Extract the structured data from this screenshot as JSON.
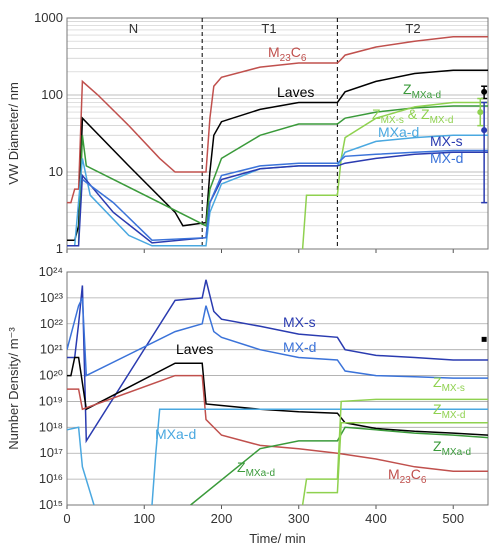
{
  "chart_data": [
    {
      "type": "line",
      "ylog": true,
      "ylabel": "VW Diameter/ nm",
      "xlim": [
        0,
        545
      ],
      "ylim": [
        1,
        1000
      ],
      "yticks": [
        1,
        10,
        100,
        1000
      ],
      "xticks": [
        0,
        100,
        200,
        300,
        400,
        500
      ],
      "minor_grid": true,
      "annotations": [
        "N",
        "T1",
        "T2"
      ],
      "vlines": [
        175,
        350
      ],
      "series": [
        {
          "color": "#c0504d",
          "x": [
            0,
            5,
            10,
            15,
            20,
            40,
            80,
            120,
            140,
            170,
            180,
            185,
            190,
            200,
            250,
            300,
            350,
            355,
            360,
            400,
            450,
            500,
            545
          ],
          "values": [
            4,
            4,
            6,
            6,
            150,
            100,
            40,
            15,
            10,
            10,
            10,
            50,
            130,
            170,
            230,
            260,
            260,
            290,
            330,
            420,
            500,
            570,
            570
          ]
        },
        {
          "color": "#000000",
          "x": [
            0,
            10,
            15,
            20,
            80,
            140,
            150,
            180,
            185,
            190,
            200,
            250,
            300,
            350,
            360,
            400,
            450,
            500,
            545
          ],
          "values": [
            1.3,
            1.3,
            2,
            50,
            12,
            3,
            2,
            2.2,
            10,
            30,
            45,
            65,
            80,
            80,
            110,
            150,
            190,
            210,
            210
          ]
        },
        {
          "color": "#3a9a3a",
          "x": [
            15,
            20,
            25,
            180,
            185,
            200,
            250,
            300,
            350,
            360,
            400,
            450,
            500,
            545
          ],
          "values": [
            1.2,
            30,
            12,
            2,
            6,
            15,
            30,
            42,
            42,
            50,
            60,
            68,
            72,
            72
          ]
        },
        {
          "color": "#8fd14f",
          "x": [
            305,
            310,
            350,
            355,
            360,
            400,
            450,
            500,
            545
          ],
          "values": [
            1,
            5,
            5,
            15,
            28,
            50,
            70,
            80,
            80
          ]
        },
        {
          "color": "#4aa8e0",
          "x": [
            10,
            20,
            30,
            80,
            110,
            180,
            185,
            200,
            250,
            300,
            350,
            360,
            400,
            450,
            500,
            545
          ],
          "values": [
            1.1,
            15,
            5,
            1.5,
            1.1,
            1.1,
            3,
            7,
            11,
            12,
            12,
            18,
            25,
            28,
            30,
            30
          ]
        },
        {
          "color": "#2a3bb0",
          "x": [
            0,
            15,
            20,
            60,
            110,
            180,
            185,
            200,
            250,
            300,
            350,
            360,
            400,
            450,
            500,
            545
          ],
          "values": [
            1.1,
            1.1,
            9,
            3,
            1.2,
            1.4,
            4,
            8,
            11,
            12,
            12,
            13,
            15,
            17,
            18,
            18
          ]
        },
        {
          "color": "#3b73d9",
          "x": [
            20,
            60,
            110,
            180,
            185,
            200,
            250,
            300,
            350,
            360,
            400,
            450,
            500,
            545
          ],
          "values": [
            8,
            4,
            1.3,
            1.4,
            4,
            9,
            12,
            13,
            13,
            16,
            17,
            18,
            19,
            19
          ]
        }
      ],
      "labels": [
        {
          "parts": [
            "M",
            "23",
            "C",
            "6"
          ],
          "color": "#c0504d"
        },
        {
          "parts": [
            "Laves"
          ],
          "color": "#000000"
        },
        {
          "parts": [
            "Z",
            "MXa-d"
          ],
          "color": "#3a9a3a"
        },
        {
          "parts": [
            "Z",
            "MX-s",
            " & Z",
            "MX-d"
          ],
          "color": "#8fd14f"
        },
        {
          "parts": [
            "MXa-d"
          ],
          "color": "#4aa8e0"
        },
        {
          "parts": [
            "MX-s"
          ],
          "color": "#2a3bb0"
        },
        {
          "parts": [
            "MX-d"
          ],
          "color": "#3b73d9"
        }
      ],
      "markers": [
        {
          "x": 540,
          "y": 110,
          "low": 90,
          "high": 130,
          "color": "#000000"
        },
        {
          "x": 535,
          "y": 60,
          "low": 40,
          "high": 90,
          "color": "#8fd14f"
        },
        {
          "x": 540,
          "y": 35,
          "low": 4,
          "high": 80,
          "color": "#2a3bb0"
        }
      ]
    },
    {
      "type": "line",
      "ylog": true,
      "ylabel": "Number Density/ m⁻³",
      "xlabel": "Time/ min",
      "xlim": [
        0,
        545
      ],
      "ylim": [
        1000000000000000.0,
        1e+24
      ],
      "yticks": [
        {
          "value": 1000000000000000.0,
          "label": "10¹⁵"
        },
        {
          "value": 1e+16,
          "label": "10¹⁶"
        },
        {
          "value": 1e+17,
          "label": "10¹⁷"
        },
        {
          "value": 1e+18,
          "label": "10¹⁸"
        },
        {
          "value": 1e+19,
          "label": "10¹⁹"
        },
        {
          "value": 1e+20,
          "label": "10²⁰"
        },
        {
          "value": 1e+21,
          "label": "10²¹"
        },
        {
          "value": 1e+22,
          "label": "10²²"
        },
        {
          "value": 1e+23,
          "label": "10²³"
        },
        {
          "value": 1e+24,
          "label": "10²⁴"
        }
      ],
      "xticks": [
        0,
        100,
        200,
        300,
        400,
        500
      ],
      "series": [
        {
          "color": "#2a3bb0",
          "x": [
            0,
            10,
            15,
            20,
            25,
            140,
            175,
            180,
            190,
            200,
            250,
            300,
            350,
            360,
            400,
            450,
            500,
            545
          ],
          "values": [
            5e+20,
            5e+20,
            1e+22,
            3e+23,
            3e+17,
            8e+22,
            1e+23,
            5e+23,
            3e+22,
            1.5e+22,
            8e+21,
            4e+21,
            3e+21,
            1e+21,
            6e+20,
            5e+20,
            4e+20,
            4e+20
          ]
        },
        {
          "color": "#3b73d9",
          "x": [
            0,
            15,
            20,
            25,
            140,
            175,
            180,
            190,
            200,
            250,
            300,
            350,
            360,
            400,
            450,
            500,
            545
          ],
          "values": [
            1e+21,
            5e+22,
            1e+23,
            1e+20,
            5e+21,
            1e+22,
            5e+22,
            5e+21,
            3e+21,
            1e+21,
            5e+20,
            4e+20,
            1.5e+20,
            1e+20,
            9e+19,
            8e+19,
            8e+19
          ]
        },
        {
          "color": "#000000",
          "x": [
            0,
            5,
            10,
            15,
            25,
            140,
            175,
            180,
            200,
            250,
            300,
            350,
            360,
            400,
            450,
            500,
            545
          ],
          "values": [
            1e+20,
            1e+20,
            5e+20,
            5e+20,
            5e+18,
            3e+20,
            3e+20,
            8e+18,
            7e+18,
            5e+18,
            4e+18,
            3.5e+18,
            1.5e+18,
            9e+17,
            7e+17,
            6e+17,
            5e+17
          ]
        },
        {
          "color": "#c0504d",
          "x": [
            0,
            15,
            20,
            140,
            175,
            180,
            200,
            250,
            300,
            350,
            400,
            450,
            500,
            545
          ],
          "values": [
            3e+19,
            3e+19,
            5e+18,
            1e+20,
            1e+20,
            2e+18,
            5e+17,
            2e+17,
            1.5e+17,
            1e+17,
            6e+16,
            3e+16,
            2e+16,
            2e+16
          ]
        },
        {
          "color": "#4aa8e0",
          "x": [
            0,
            15,
            20,
            35,
            null,
            110,
            115,
            120,
            175,
            350,
            545
          ],
          "values": [
            8e+17,
            1e+18,
            3e+16,
            1000000000000000.0,
            null,
            1000000000000000.0,
            1e+17,
            5e+18,
            5e+18,
            5e+18,
            5e+18
          ]
        },
        {
          "color": "#3a9a3a",
          "x": [
            160,
            250,
            300,
            350,
            360,
            400,
            450,
            500,
            545
          ],
          "values": [
            1000000000000000.0,
            1.5e+17,
            3e+17,
            3e+17,
            1e+18,
            8e+17,
            6e+17,
            5e+17,
            4e+17
          ]
        },
        {
          "color": "#8fd14f",
          "x": [
            305,
            310,
            350,
            355,
            400,
            545
          ],
          "values": [
            1000000000000000.0,
            1e+16,
            1e+16,
            1e+19,
            1.2e+19,
            1.2e+19
          ]
        },
        {
          "color": "#8fd14f",
          "x": [
            310,
            350,
            355,
            545
          ],
          "values": [
            3000000000000000.0,
            3000000000000000.0,
            1.5e+18,
            1.5e+18
          ]
        }
      ],
      "labels": [
        {
          "parts": [
            "MX-s"
          ],
          "color": "#2a3bb0"
        },
        {
          "parts": [
            "MX-d"
          ],
          "color": "#3b73d9"
        },
        {
          "parts": [
            "Laves"
          ],
          "color": "#000000"
        },
        {
          "parts": [
            "MXa-d"
          ],
          "color": "#4aa8e0"
        },
        {
          "parts": [
            "Z",
            "MXa-d"
          ],
          "color": "#3a9a3a"
        },
        {
          "parts": [
            "Z",
            "MX-s"
          ],
          "color": "#8fd14f"
        },
        {
          "parts": [
            "Z",
            "MX-d"
          ],
          "color": "#8fd14f"
        },
        {
          "parts": [
            "Z",
            "MXa-d"
          ],
          "color": "#3a9a3a"
        },
        {
          "parts": [
            "M",
            "23",
            "C",
            "6"
          ],
          "color": "#c0504d"
        }
      ],
      "markers": [
        {
          "x": 540,
          "y": 2.5e+21,
          "color": "#000000"
        }
      ]
    }
  ]
}
